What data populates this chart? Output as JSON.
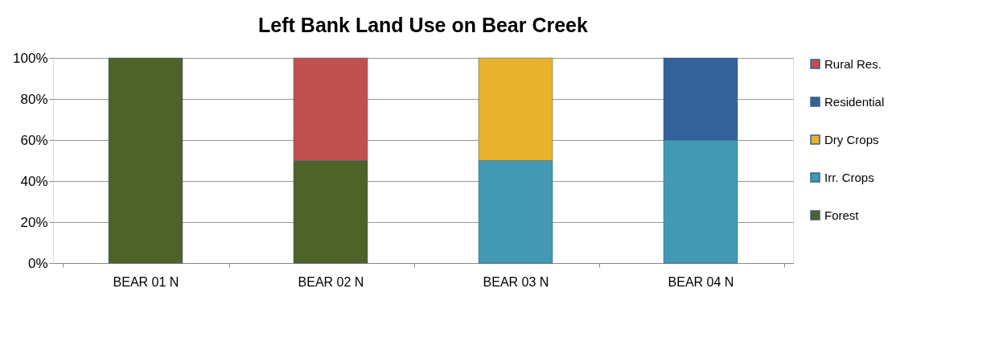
{
  "chart_data": {
    "type": "bar",
    "title": "Left Bank Land Use on Bear Creek",
    "stacked": true,
    "categories": [
      "BEAR 01 N",
      "BEAR 02 N",
      "BEAR 03 N",
      "BEAR 04 N"
    ],
    "series": [
      {
        "name": "Forest",
        "color": "#4f6228",
        "values": [
          100,
          50,
          null,
          null
        ]
      },
      {
        "name": "Irr. Crops",
        "color": "#4299b4",
        "values": [
          null,
          null,
          50,
          60
        ]
      },
      {
        "name": "Dry Crops",
        "color": "#e8b22c",
        "values": [
          null,
          null,
          50,
          null
        ]
      },
      {
        "name": "Residential",
        "color": "#35619a",
        "values": [
          null,
          null,
          null,
          40
        ]
      },
      {
        "name": "Rural Res.",
        "color": "#c0504d",
        "values": [
          null,
          50,
          null,
          null
        ]
      }
    ],
    "ylim": [
      0,
      100
    ],
    "yticks": [
      {
        "value": 0,
        "label": "0%"
      },
      {
        "value": 20,
        "label": "20%"
      },
      {
        "value": 40,
        "label": "40%"
      },
      {
        "value": 60,
        "label": "60%"
      },
      {
        "value": 80,
        "label": "80%"
      },
      {
        "value": 100,
        "label": "100%"
      }
    ],
    "grid": "y",
    "legend": "right"
  }
}
